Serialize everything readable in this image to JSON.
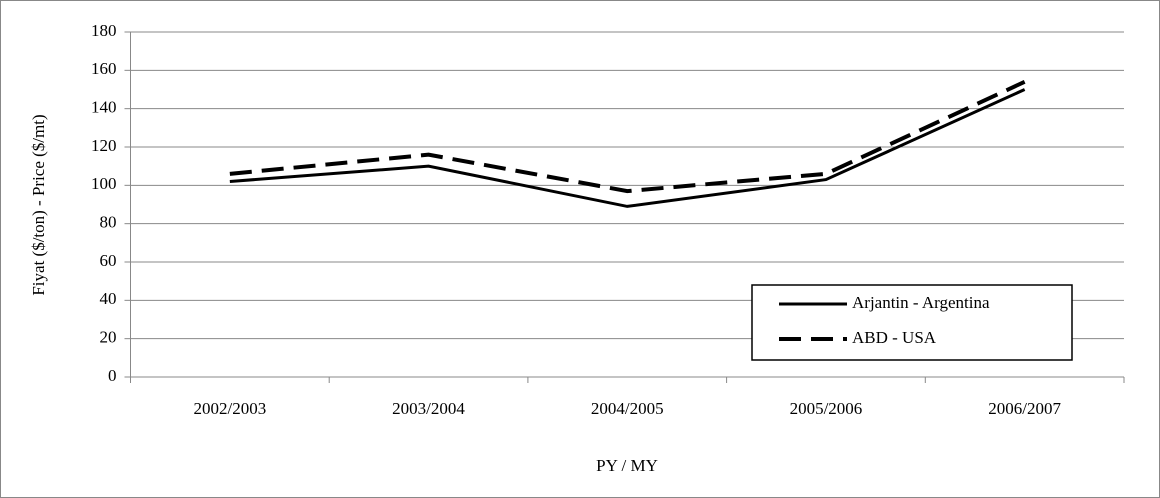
{
  "chart_data": {
    "type": "line",
    "y_label": "Fiyat ($/ton) - Price ($/mt)",
    "x_label": "PY / MY",
    "categories": [
      "2002/2003",
      "2003/2004",
      "2004/2005",
      "2005/2006",
      "2006/2007"
    ],
    "series": [
      {
        "name": "Arjantin - Argentina",
        "color": "#000000",
        "dash": false,
        "values": [
          102,
          110,
          89,
          103,
          150
        ]
      },
      {
        "name": "ABD - USA",
        "color": "#000000",
        "dash": true,
        "values": [
          106,
          116,
          97,
          106,
          154
        ]
      }
    ],
    "ylim": [
      0,
      180
    ],
    "yticks": [
      0,
      20,
      40,
      60,
      80,
      100,
      120,
      140,
      160,
      180
    ],
    "grid": true,
    "legend": "lower right"
  }
}
